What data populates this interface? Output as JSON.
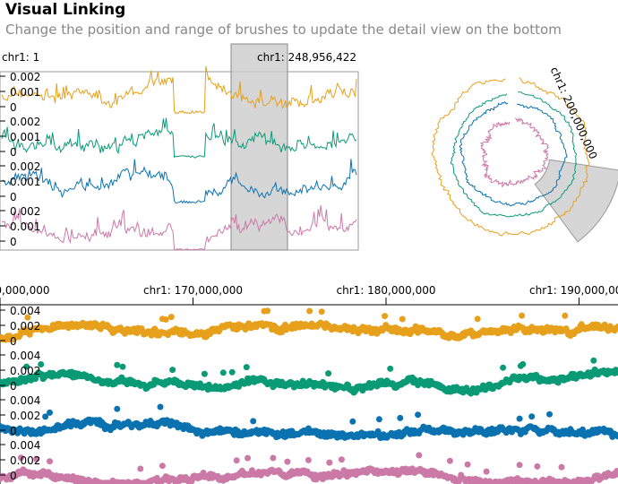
{
  "title": "Visual Linking",
  "subtitle": "Change the position and range of brushes to update the detail view on the bottom",
  "colors": [
    "#e6a01b",
    "#0a9b76",
    "#0b72b0",
    "#cb79a7"
  ],
  "chart_data": [
    {
      "type": "line",
      "view": "overview-linear",
      "x_start_label": "chr1: 1",
      "x_end_label": "chr1: 248,956,422",
      "xlim": [
        1,
        248956422
      ],
      "ylim": [
        0,
        0.003
      ],
      "ytick_labels": [
        "0.002",
        "0.001",
        "0"
      ],
      "brush": {
        "start": 200000000,
        "end": 225000000
      },
      "series_count": 4
    },
    {
      "type": "line",
      "view": "overview-circular",
      "brush_label": "chr1: 200,000,000",
      "brush": {
        "start": 200000000,
        "end": 225000000
      },
      "series_count": 4
    },
    {
      "type": "scatter",
      "view": "detail",
      "xlim": [
        160000000,
        200000000
      ],
      "xtick_labels": [
        "chr1: 160,000,000",
        "chr1: 170,000,000",
        "chr1: 180,000,000",
        "chr1: 190,000,000",
        "chr1: 200,000,000"
      ],
      "xticks": [
        160000000,
        170000000,
        180000000,
        190000000,
        200000000
      ],
      "ylim": [
        0,
        0.005
      ],
      "ytick_labels": [
        "0.004",
        "0.002",
        "0"
      ],
      "series_count": 4
    }
  ]
}
